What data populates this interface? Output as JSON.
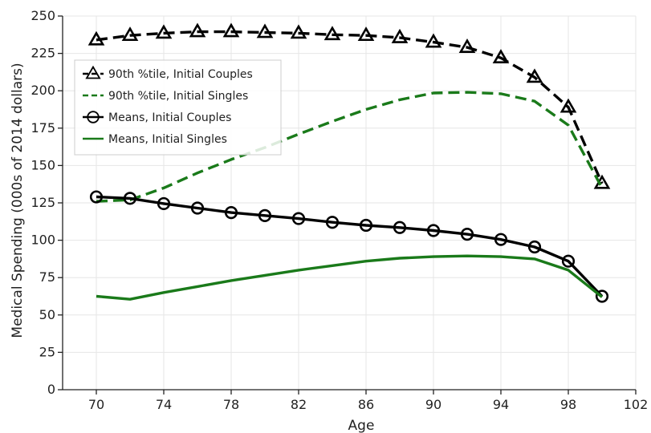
{
  "chart_data": {
    "type": "line",
    "title": "",
    "xlabel": "Age",
    "ylabel": "Medical Spending (000s of 2014 dollars)",
    "xlim": [
      68,
      102
    ],
    "ylim": [
      0,
      250
    ],
    "xticks": [
      70,
      74,
      78,
      82,
      86,
      90,
      94,
      98,
      102
    ],
    "yticks": [
      0,
      25,
      50,
      75,
      100,
      125,
      150,
      175,
      200,
      225,
      250
    ],
    "grid": true,
    "legend_position": "upper-left",
    "series": [
      {
        "name": "90th %tile, Initial Couples",
        "color": "#000000",
        "dash": "dashed",
        "marker": "triangle",
        "x": [
          70,
          72,
          74,
          76,
          78,
          80,
          82,
          84,
          86,
          88,
          90,
          92,
          94,
          96,
          98,
          100
        ],
        "y": [
          234,
          237,
          238.5,
          239.5,
          239.5,
          239,
          238.5,
          237.5,
          237,
          235.5,
          232.5,
          229,
          222,
          209,
          189,
          138
        ]
      },
      {
        "name": "90th %tile, Initial Singles",
        "color": "#1a7a1a",
        "dash": "dashed",
        "marker": "none",
        "x": [
          70,
          72,
          74,
          76,
          78,
          80,
          82,
          84,
          86,
          88,
          90,
          92,
          94,
          96,
          98,
          100
        ],
        "y": [
          126,
          127,
          135,
          145,
          154,
          162,
          171,
          179.5,
          187.5,
          194,
          198.5,
          199,
          198,
          193,
          177,
          135
        ]
      },
      {
        "name": "Means, Initial Couples",
        "color": "#000000",
        "dash": "solid",
        "marker": "circle",
        "x": [
          70,
          72,
          74,
          76,
          78,
          80,
          82,
          84,
          86,
          88,
          90,
          92,
          94,
          96,
          98,
          100
        ],
        "y": [
          129,
          128,
          124.5,
          121.5,
          118.5,
          116.5,
          114.5,
          112,
          110,
          108.5,
          106.5,
          104,
          100.5,
          95.5,
          86,
          62.5
        ]
      },
      {
        "name": "Means, Initial Singles",
        "color": "#1a7a1a",
        "dash": "solid",
        "marker": "none",
        "x": [
          70,
          72,
          74,
          76,
          78,
          80,
          82,
          84,
          86,
          88,
          90,
          92,
          94,
          96,
          98,
          100
        ],
        "y": [
          62.5,
          60.5,
          65,
          69,
          73,
          76.5,
          80,
          83,
          86,
          88,
          89,
          89.5,
          89,
          87.5,
          80,
          62
        ]
      }
    ]
  }
}
